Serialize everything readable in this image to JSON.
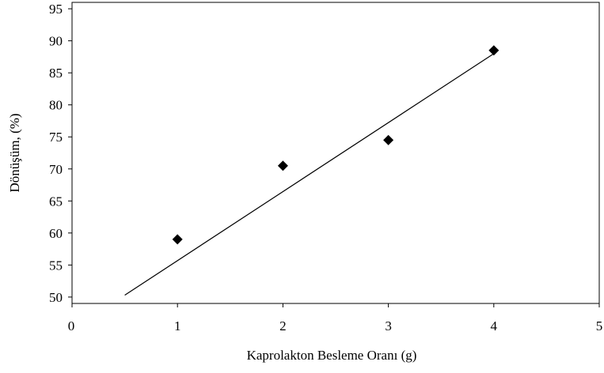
{
  "chart_data": {
    "type": "scatter",
    "title": "",
    "xlabel": "Kaprolakton Besleme Oranı (g)",
    "ylabel": "Dönüşüm, (%)",
    "xlim": [
      0,
      5
    ],
    "ylim": [
      49,
      96
    ],
    "x_ticks": [
      "0",
      "1",
      "2",
      "3",
      "4",
      "5"
    ],
    "y_ticks": [
      "50",
      "55",
      "60",
      "65",
      "70",
      "75",
      "80",
      "85",
      "90",
      "95"
    ],
    "grid": false,
    "legend": "none",
    "series": [
      {
        "marker": "diamond",
        "color": "#000000",
        "points": [
          {
            "x": 1,
            "y": 59
          },
          {
            "x": 2,
            "y": 70.5
          },
          {
            "x": 3,
            "y": 74.5
          },
          {
            "x": 4,
            "y": 88.5
          }
        ]
      }
    ],
    "trendline": {
      "type": "linear",
      "color": "#000000",
      "from": {
        "x": 0.5,
        "y": 50.3
      },
      "to": {
        "x": 4,
        "y": 88
      }
    }
  }
}
